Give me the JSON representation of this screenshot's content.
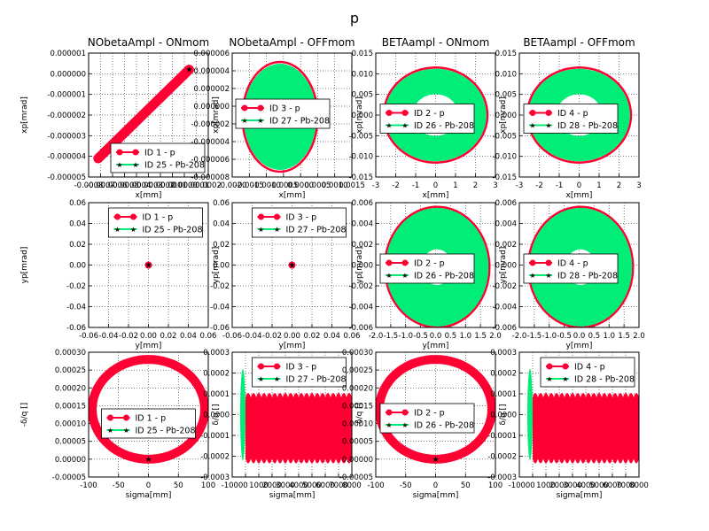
{
  "figure_title": "p",
  "colors": {
    "p_series": "#ff0033",
    "pb_series": "#00ee77"
  },
  "chart_data": [
    {
      "type": "scatter",
      "title": "NObetaAmpl - ONmom",
      "xlabel": "x[mm]",
      "ylabel": "xp[mrad]",
      "xlim": [
        -0.0008,
        0.0002
      ],
      "ylim": [
        -5e-06,
        1e-06
      ],
      "xticks": [
        -0.0008,
        -0.0007,
        -0.0006,
        -0.0005,
        -0.0004,
        -0.0003,
        -0.0002,
        -0.0001,
        0.0,
        0.0001,
        0.0002
      ],
      "xtick_labels": [
        "-0.0008",
        "-0.0007",
        "-0.0006",
        "-0.0005",
        "-0.0004",
        "-0.0003",
        "-0.0002",
        "-0.0001",
        "0.0000",
        "0.0001",
        "0.0002"
      ],
      "yticks": [
        -5e-06,
        -4e-06,
        -3e-06,
        -2e-06,
        -1e-06,
        0,
        1e-06
      ],
      "ytick_labels": [
        "-0.000005",
        "-0.000004",
        "-0.000003",
        "-0.000002",
        "-0.000001",
        "0.000000",
        "0.000001"
      ],
      "legend": {
        "loc": "lower-right",
        "entries": [
          "ID 1 - p",
          "ID 25 - Pb-208"
        ]
      },
      "series": [
        {
          "label": "ID 1 - p",
          "shape": "line-band",
          "points": [
            [
              -0.00072,
              -4.1e-06
            ],
            [
              4e-05,
              2e-07
            ]
          ]
        },
        {
          "label": "ID 25 - Pb-208",
          "shape": "point",
          "points": [
            [
              4e-05,
              2e-07
            ]
          ]
        }
      ]
    },
    {
      "type": "scatter",
      "title": "NObetaAmpl - OFFmom",
      "xlabel": "x[mm]",
      "ylabel": "xp[mrad]",
      "xlim": [
        -0.002,
        0.0015
      ],
      "ylim": [
        -8e-06,
        6e-06
      ],
      "xticks": [
        -0.002,
        -0.0015,
        -0.001,
        -0.0005,
        0,
        0.0005,
        0.001,
        0.0015
      ],
      "xtick_labels": [
        "-0.0020",
        "-0.0015",
        "-0.0010",
        "-0.0005",
        "0.0000",
        "0.0005",
        "0.0010",
        "0.0015"
      ],
      "yticks": [
        -8e-06,
        -6e-06,
        -4e-06,
        -2e-06,
        0,
        2e-06,
        4e-06,
        6e-06
      ],
      "ytick_labels": [
        "-0.000008",
        "-0.000006",
        "-0.000004",
        "-0.000002",
        "0.000000",
        "0.000002",
        "0.000004",
        "0.000006"
      ],
      "legend": {
        "loc": "upper-left",
        "entries": [
          "ID 3 - p",
          "ID 27 - Pb-208"
        ]
      },
      "series": [
        {
          "label": "ID 3 - p",
          "shape": "ellipse",
          "center": [
            -0.0006,
            -1.2e-06
          ],
          "rx": 0.0011,
          "ry": 6.2e-06,
          "tilt": 0.2
        },
        {
          "label": "ID 27 - Pb-208",
          "shape": "filled-ellipse",
          "center": [
            -0.0006,
            -1.2e-06
          ],
          "rx": 0.00107,
          "ry": 6e-06,
          "tilt": 0.2
        }
      ]
    },
    {
      "type": "scatter",
      "title": "BETAampl - ONmom",
      "xlabel": "x[mm]",
      "ylabel": "xp[mrad]",
      "xlim": [
        -3,
        3
      ],
      "ylim": [
        -0.015,
        0.015
      ],
      "xticks": [
        -3,
        -2,
        -1,
        0,
        1,
        2,
        3
      ],
      "xtick_labels": [
        "-3",
        "-2",
        "-1",
        "0",
        "1",
        "2",
        "3"
      ],
      "yticks": [
        -0.015,
        -0.01,
        -0.005,
        0,
        0.005,
        0.01,
        0.015
      ],
      "ytick_labels": [
        "-0.015",
        "-0.010",
        "-0.005",
        "0.000",
        "0.005",
        "0.010",
        "0.015"
      ],
      "legend": {
        "loc": "center-left",
        "entries": [
          "ID 2 - p",
          "ID 26 - Pb-208"
        ]
      },
      "series": [
        {
          "label": "ID 2 - p",
          "shape": "ellipse",
          "center": [
            0,
            0
          ],
          "rx": 2.6,
          "ry": 0.0115,
          "tilt": -0.15
        },
        {
          "label": "ID 26 - Pb-208",
          "shape": "ring",
          "center": [
            0,
            0
          ],
          "rx": 2.55,
          "ry": 0.0112,
          "inner_scale": 0.45,
          "tilt": -0.15
        }
      ]
    },
    {
      "type": "scatter",
      "title": "BETAampl - OFFmom",
      "xlabel": "x[mm]",
      "ylabel": "xp[mrad]",
      "xlim": [
        -3,
        3
      ],
      "ylim": [
        -0.015,
        0.015
      ],
      "xticks": [
        -3,
        -2,
        -1,
        0,
        1,
        2,
        3
      ],
      "xtick_labels": [
        "-3",
        "-2",
        "-1",
        "0",
        "1",
        "2",
        "3"
      ],
      "yticks": [
        -0.015,
        -0.01,
        -0.005,
        0,
        0.005,
        0.01,
        0.015
      ],
      "ytick_labels": [
        "-0.015",
        "-0.010",
        "-0.005",
        "0.000",
        "0.005",
        "0.010",
        "0.015"
      ],
      "legend": {
        "loc": "center-left",
        "entries": [
          "ID 4 - p",
          "ID 28 - Pb-208"
        ]
      },
      "series": [
        {
          "label": "ID 4 - p",
          "shape": "ellipse",
          "center": [
            0,
            0
          ],
          "rx": 2.6,
          "ry": 0.0115,
          "tilt": -0.15
        },
        {
          "label": "ID 28 - Pb-208",
          "shape": "ring",
          "center": [
            0,
            0
          ],
          "rx": 2.55,
          "ry": 0.0112,
          "inner_scale": 0.45,
          "tilt": -0.15
        }
      ]
    },
    {
      "type": "scatter",
      "title": "",
      "xlabel": "y[mm]",
      "ylabel": "yp[mrad]",
      "xlim": [
        -0.06,
        0.06
      ],
      "ylim": [
        -0.06,
        0.06
      ],
      "xticks": [
        -0.06,
        -0.04,
        -0.02,
        0,
        0.02,
        0.04,
        0.06
      ],
      "xtick_labels": [
        "-0.06",
        "-0.04",
        "-0.02",
        "0.00",
        "0.02",
        "0.04",
        "0.06"
      ],
      "yticks": [
        -0.06,
        -0.04,
        -0.02,
        0,
        0.02,
        0.04,
        0.06
      ],
      "ytick_labels": [
        "-0.06",
        "-0.04",
        "-0.02",
        "0.00",
        "0.02",
        "0.04",
        "0.06"
      ],
      "legend": {
        "loc": "upper-center",
        "entries": [
          "ID 1 - p",
          "ID 25 - Pb-208"
        ]
      },
      "series": [
        {
          "label": "ID 1 - p",
          "shape": "point",
          "points": [
            [
              0,
              0
            ]
          ]
        },
        {
          "label": "ID 25 - Pb-208",
          "shape": "point",
          "points": [
            [
              0,
              0
            ]
          ]
        }
      ]
    },
    {
      "type": "scatter",
      "title": "",
      "xlabel": "y[mm]",
      "ylabel": "yp[mrad]",
      "xlim": [
        -0.06,
        0.06
      ],
      "ylim": [
        -0.06,
        0.06
      ],
      "xticks": [
        -0.06,
        -0.04,
        -0.02,
        0,
        0.02,
        0.04,
        0.06
      ],
      "xtick_labels": [
        "-0.06",
        "-0.04",
        "-0.02",
        "0.00",
        "0.02",
        "0.04",
        "0.06"
      ],
      "yticks": [
        -0.06,
        -0.04,
        -0.02,
        0,
        0.02,
        0.04,
        0.06
      ],
      "ytick_labels": [
        "-0.06",
        "-0.04",
        "-0.02",
        "0.00",
        "0.02",
        "0.04",
        "0.06"
      ],
      "legend": {
        "loc": "upper-center",
        "entries": [
          "ID 3 - p",
          "ID 27 - Pb-208"
        ]
      },
      "series": [
        {
          "label": "ID 3 - p",
          "shape": "point",
          "points": [
            [
              0,
              0
            ]
          ]
        },
        {
          "label": "ID 27 - Pb-208",
          "shape": "point",
          "points": [
            [
              0,
              0
            ]
          ]
        }
      ]
    },
    {
      "type": "scatter",
      "title": "",
      "xlabel": "y[mm]",
      "ylabel": "yp[mrad]",
      "xlim": [
        -2,
        2
      ],
      "ylim": [
        -0.006,
        0.006
      ],
      "xticks": [
        -2,
        -1.5,
        -1,
        -0.5,
        0,
        0.5,
        1,
        1.5,
        2
      ],
      "xtick_labels": [
        "-2.0",
        "-1.5",
        "-1.0",
        "-0.5",
        "0.0",
        "0.5",
        "1.0",
        "1.5",
        "2.0"
      ],
      "yticks": [
        -0.006,
        -0.004,
        -0.002,
        0,
        0.002,
        0.004,
        0.006
      ],
      "ytick_labels": [
        "-0.006",
        "-0.004",
        "-0.002",
        "0.000",
        "0.002",
        "0.004",
        "0.006"
      ],
      "legend": {
        "loc": "center-left",
        "entries": [
          "ID 2 - p",
          "ID 26 - Pb-208"
        ]
      },
      "series": [
        {
          "label": "ID 2 - p",
          "shape": "ellipse",
          "center": [
            0.05,
            -0.0002
          ],
          "rx": 1.75,
          "ry": 0.0058,
          "tilt": 0.5
        },
        {
          "label": "ID 26 - Pb-208",
          "shape": "ring",
          "center": [
            0.05,
            -0.0002
          ],
          "rx": 1.72,
          "ry": 0.0057,
          "inner_scale": 0.3,
          "tilt": 0.5
        }
      ]
    },
    {
      "type": "scatter",
      "title": "",
      "xlabel": "y[mm]",
      "ylabel": "yp[mrad]",
      "xlim": [
        -2,
        2
      ],
      "ylim": [
        -0.006,
        0.006
      ],
      "xticks": [
        -2,
        -1.5,
        -1,
        -0.5,
        0,
        0.5,
        1,
        1.5,
        2
      ],
      "xtick_labels": [
        "-2.0",
        "-1.5",
        "-1.0",
        "-0.5",
        "0.0",
        "0.5",
        "1.0",
        "1.5",
        "2.0"
      ],
      "yticks": [
        -0.006,
        -0.004,
        -0.002,
        0,
        0.002,
        0.004,
        0.006
      ],
      "ytick_labels": [
        "-0.006",
        "-0.004",
        "-0.002",
        "0.000",
        "0.002",
        "0.004",
        "0.006"
      ],
      "legend": {
        "loc": "center-left",
        "entries": [
          "ID 4 - p",
          "ID 28 - Pb-208"
        ]
      },
      "series": [
        {
          "label": "ID 4 - p",
          "shape": "ellipse",
          "center": [
            0.05,
            -0.0002
          ],
          "rx": 1.75,
          "ry": 0.0058,
          "tilt": 0.5
        },
        {
          "label": "ID 28 - Pb-208",
          "shape": "ring",
          "center": [
            0.05,
            -0.0002
          ],
          "rx": 1.72,
          "ry": 0.0057,
          "inner_scale": 0.3,
          "tilt": 0.5
        }
      ]
    },
    {
      "type": "scatter",
      "title": "",
      "xlabel": "sigma[mm]",
      "ylabel": "-δ/q []",
      "xlim": [
        -100,
        100
      ],
      "ylim": [
        -5e-05,
        0.0003
      ],
      "xticks": [
        -100,
        -50,
        0,
        50,
        100
      ],
      "xtick_labels": [
        "-100",
        "-50",
        "0",
        "50",
        "100"
      ],
      "yticks": [
        -5e-05,
        0,
        5e-05,
        0.0001,
        0.00015,
        0.0002,
        0.00025,
        0.0003
      ],
      "ytick_labels": [
        "-0.00005",
        "0.00000",
        "0.00005",
        "0.00010",
        "0.00015",
        "0.00020",
        "0.00025",
        "0.00030"
      ],
      "legend": {
        "loc": "center",
        "entries": [
          "ID 1 - p",
          "ID 25 - Pb-208"
        ]
      },
      "series": [
        {
          "label": "ID 1 - p",
          "shape": "ellipse",
          "center": [
            0,
            0.00014
          ],
          "rx": 94,
          "ry": 0.00014,
          "tilt": 0
        },
        {
          "label": "ID 25 - Pb-208",
          "shape": "point",
          "points": [
            [
              0,
              0
            ]
          ]
        }
      ]
    },
    {
      "type": "scatter",
      "title": "",
      "xlabel": "sigma[mm]",
      "ylabel": "δ/q []",
      "xlim": [
        -1000,
        8000
      ],
      "ylim": [
        -0.0003,
        0.0003
      ],
      "xticks": [
        -1000,
        0,
        1000,
        2000,
        3000,
        4000,
        5000,
        6000,
        7000,
        8000
      ],
      "xtick_labels": [
        "-1000",
        "0",
        "1000",
        "2000",
        "3000",
        "4000",
        "5000",
        "6000",
        "7000",
        "8000"
      ],
      "yticks": [
        -0.0003,
        -0.0002,
        -0.0001,
        0,
        0.0001,
        0.0002,
        0.0003
      ],
      "ytick_labels": [
        "-0.0003",
        "-0.0002",
        "-0.0001",
        "0.0000",
        "0.0001",
        "0.0002",
        "0.0003"
      ],
      "legend": {
        "loc": "upper-center",
        "entries": [
          "ID 3 - p",
          "ID 27 - Pb-208"
        ]
      },
      "series": [
        {
          "label": "ID 3 - p",
          "shape": "wave-band",
          "x_range": [
            0,
            8000
          ],
          "y_range": [
            -0.00023,
            0.0001
          ],
          "periods": 20
        },
        {
          "label": "ID 27 - Pb-208",
          "shape": "filled-ellipse",
          "center": [
            -200,
            0
          ],
          "rx": 200,
          "ry": 0.00022,
          "tilt": 0
        }
      ]
    },
    {
      "type": "scatter",
      "title": "",
      "xlabel": "sigma[mm]",
      "ylabel": "-δ/q []",
      "xlim": [
        -100,
        100
      ],
      "ylim": [
        -5e-05,
        0.0003
      ],
      "xticks": [
        -100,
        -50,
        0,
        50,
        100
      ],
      "xtick_labels": [
        "-100",
        "-50",
        "0",
        "50",
        "100"
      ],
      "yticks": [
        -5e-05,
        0,
        5e-05,
        0.0001,
        0.00015,
        0.0002,
        0.00025,
        0.0003
      ],
      "ytick_labels": [
        "-0.00005",
        "0.00000",
        "0.00005",
        "0.00010",
        "0.00015",
        "0.00020",
        "0.00025",
        "0.00030"
      ],
      "legend": {
        "loc": "center-left",
        "entries": [
          "ID 2 - p",
          "ID 26 - Pb-208"
        ]
      },
      "series": [
        {
          "label": "ID 2 - p",
          "shape": "ellipse",
          "center": [
            0,
            0.00014
          ],
          "rx": 94,
          "ry": 0.00014,
          "tilt": 0
        },
        {
          "label": "ID 26 - Pb-208",
          "shape": "point",
          "points": [
            [
              0,
              0
            ]
          ]
        }
      ]
    },
    {
      "type": "scatter",
      "title": "",
      "xlabel": "sigma[mm]",
      "ylabel": "δ/q []",
      "xlim": [
        -1000,
        8000
      ],
      "ylim": [
        -0.0003,
        0.0003
      ],
      "xticks": [
        -1000,
        0,
        1000,
        2000,
        3000,
        4000,
        5000,
        6000,
        7000,
        8000
      ],
      "xtick_labels": [
        "-1000",
        "0",
        "1000",
        "2000",
        "3000",
        "4000",
        "5000",
        "6000",
        "7000",
        "8000"
      ],
      "yticks": [
        -0.0003,
        -0.0002,
        -0.0001,
        0,
        0.0001,
        0.0002,
        0.0003
      ],
      "ytick_labels": [
        "-0.0003",
        "-0.0002",
        "-0.0001",
        "0.0000",
        "0.0001",
        "0.0002",
        "0.0003"
      ],
      "legend": {
        "loc": "upper-right",
        "entries": [
          "ID 4 - p",
          "ID 28 - Pb-208"
        ]
      },
      "series": [
        {
          "label": "ID 4 - p",
          "shape": "wave-band",
          "x_range": [
            0,
            8000
          ],
          "y_range": [
            -0.00023,
            0.0001
          ],
          "periods": 20
        },
        {
          "label": "ID 28 - Pb-208",
          "shape": "filled-ellipse",
          "center": [
            -200,
            0
          ],
          "rx": 200,
          "ry": 0.00022,
          "tilt": 0
        }
      ]
    }
  ]
}
